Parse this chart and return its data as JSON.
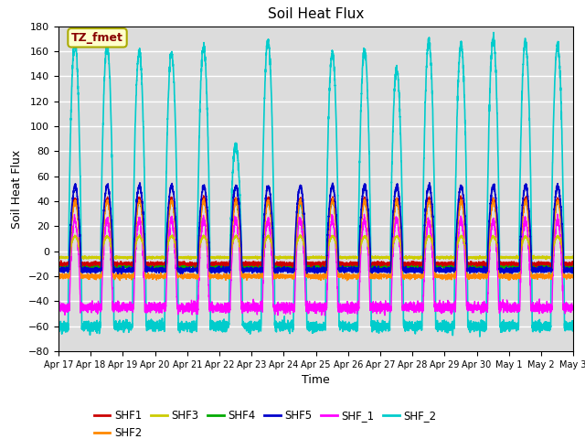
{
  "title": "Soil Heat Flux",
  "xlabel": "Time",
  "ylabel": "Soil Heat Flux",
  "ylim": [
    -80,
    180
  ],
  "yticks": [
    -80,
    -60,
    -40,
    -20,
    0,
    20,
    40,
    60,
    80,
    100,
    120,
    140,
    160,
    180
  ],
  "series": {
    "SHF1": {
      "color": "#cc0000",
      "lw": 1.0
    },
    "SHF2": {
      "color": "#ff8800",
      "lw": 1.0
    },
    "SHF3": {
      "color": "#cccc00",
      "lw": 1.0
    },
    "SHF4": {
      "color": "#00aa00",
      "lw": 1.0
    },
    "SHF5": {
      "color": "#0000cc",
      "lw": 1.2
    },
    "SHF_1": {
      "color": "#ff00ff",
      "lw": 1.0
    },
    "SHF_2": {
      "color": "#00cccc",
      "lw": 1.2
    }
  },
  "annotation_text": "TZ_fmet",
  "annotation_bg": "#ffffcc",
  "annotation_border": "#aaaa00",
  "annotation_fg": "#880000",
  "bg_color": "#dcdcdc",
  "grid_color": "#ffffff",
  "n_days": 16,
  "pts_per_day": 288
}
